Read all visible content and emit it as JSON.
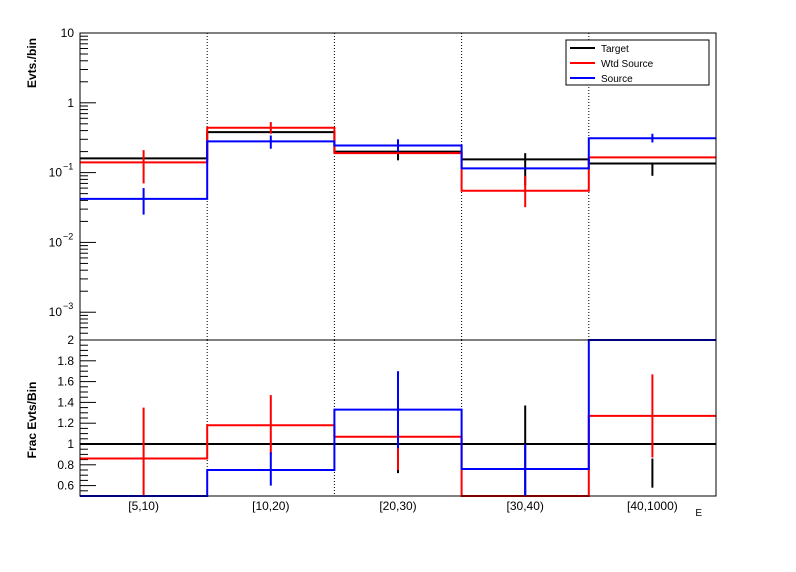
{
  "chart_data": [
    {
      "type": "step",
      "panel": "top",
      "ylabel": "Evts./bin",
      "yscale": "log",
      "ylim": [
        0.0004,
        10
      ],
      "ytick_labels": [
        {
          "value": 10,
          "base": "10",
          "exp": ""
        },
        {
          "value": 1,
          "base": "1",
          "exp": ""
        },
        {
          "value": 0.1,
          "base": "10",
          "exp": "−1"
        },
        {
          "value": 0.01,
          "base": "10",
          "exp": "−2"
        },
        {
          "value": 0.001,
          "base": "10",
          "exp": "−3"
        }
      ],
      "categories": [
        "[5,10)",
        "[10,20)",
        "[20,30)",
        "[30,40)",
        "[40,1000)"
      ],
      "legend": {
        "position": "top-right"
      },
      "series": [
        {
          "name": "Target",
          "color": "#000000",
          "values": [
            0.16,
            0.38,
            0.2,
            0.155,
            0.135
          ],
          "err_low": [
            0.16,
            0.38,
            0.15,
            0.065,
            0.09
          ],
          "err_high": [
            0.16,
            0.38,
            0.26,
            0.19,
            0.135
          ]
        },
        {
          "name": "Wtd Source",
          "color": "#ff0000",
          "values": [
            0.14,
            0.44,
            0.19,
            0.055,
            0.165
          ],
          "err_low": [
            0.07,
            0.36,
            0.19,
            0.032,
            0.165
          ],
          "err_high": [
            0.21,
            0.53,
            0.19,
            0.09,
            0.165
          ]
        },
        {
          "name": "Source",
          "color": "#0000ff",
          "values": [
            0.042,
            0.28,
            0.245,
            0.115,
            0.31
          ],
          "err_low": [
            0.025,
            0.22,
            0.2,
            0.115,
            0.27
          ],
          "err_high": [
            0.06,
            0.34,
            0.3,
            0.115,
            0.36
          ]
        }
      ]
    },
    {
      "type": "step",
      "panel": "bottom",
      "ylabel": "Frac Evts/Bin",
      "ylim": [
        0.5,
        2.0
      ],
      "yticks": [
        0.6,
        0.8,
        1,
        1.2,
        1.4,
        1.6,
        1.8,
        2
      ],
      "ytick_labels": [
        "0.6",
        "0.8",
        "1",
        "1.2",
        "1.4",
        "1.6",
        "1.8",
        "2"
      ],
      "categories": [
        "[5,10)",
        "[10,20)",
        "[20,30)",
        "[30,40)",
        "[40,1000)"
      ],
      "xlabel": "E",
      "series": [
        {
          "name": "Target",
          "color": "#000000",
          "values": [
            1,
            1,
            1,
            1,
            1
          ],
          "err_low": [
            1,
            1,
            0.72,
            0.5,
            0.58
          ],
          "err_high": [
            1,
            1,
            1,
            1.37,
            0.86
          ]
        },
        {
          "name": "Wtd Source",
          "color": "#ff0000",
          "values": [
            0.86,
            1.18,
            1.07,
            0.5,
            1.27
          ],
          "err_low": [
            0.5,
            0.9,
            0.75,
            0.5,
            0.87
          ],
          "err_high": [
            1.35,
            1.47,
            1.07,
            0.5,
            1.67
          ]
        },
        {
          "name": "Source",
          "color": "#0000ff",
          "values": [
            0.5,
            0.75,
            1.33,
            0.76,
            2.0
          ],
          "err_low": [
            0.5,
            0.6,
            0.96,
            0.5,
            2.0
          ],
          "err_high": [
            0.5,
            0.92,
            1.7,
            1.0,
            2.0
          ]
        }
      ]
    }
  ]
}
